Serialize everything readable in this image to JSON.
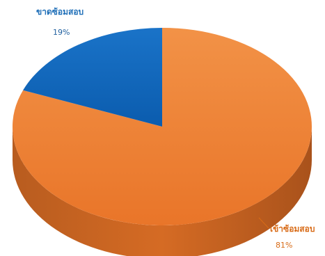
{
  "chart_data": {
    "type": "pie",
    "title": "",
    "categories": [
      "ขาดซ้อมสอบ",
      "เข้าซ้อมสอบ"
    ],
    "values": [
      19,
      81
    ],
    "value_labels": [
      "19%",
      "81%"
    ],
    "colors": [
      "#0f65b8",
      "#ed7d31"
    ],
    "side_colors": [
      "#0b4d8d",
      "#b85c1f"
    ],
    "legend": "none"
  }
}
